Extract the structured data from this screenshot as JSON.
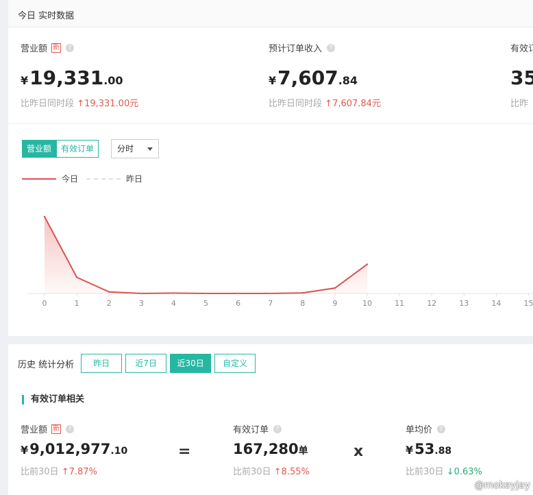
{
  "today": {
    "title": "今日 实时数据",
    "metrics": [
      {
        "label": "营业额",
        "badge": "新",
        "currency": "¥",
        "int": "19,331",
        "dec": ".00",
        "compare_label": "比昨日同时段",
        "arrow": "↑",
        "compare_value": "19,331.00元"
      },
      {
        "label": "预计订单收入",
        "currency": "¥",
        "int": "7,607",
        "dec": ".84",
        "compare_label": "比昨日同时段",
        "arrow": "↑",
        "compare_value": "7,607.84元"
      },
      {
        "label": "有效订",
        "int": "35",
        "compare_label": "比昨"
      }
    ],
    "tabs": [
      "营业额",
      "有效订单"
    ],
    "granularity": "分时",
    "legend": {
      "today": "今日",
      "yesterday": "昨日"
    }
  },
  "chart_data": {
    "type": "area",
    "x_ticks": [
      "0",
      "1",
      "2",
      "3",
      "4",
      "5",
      "6",
      "7",
      "8",
      "9",
      "10",
      "11",
      "12",
      "13",
      "14",
      "15"
    ],
    "series": [
      {
        "name": "今日",
        "x": [
          0,
          1,
          2,
          3,
          4,
          5,
          6,
          7,
          8,
          9,
          10
        ],
        "values": [
          100,
          21,
          2,
          0,
          0.5,
          0,
          0,
          0,
          0.7,
          7,
          38
        ],
        "color": "#d9534f"
      },
      {
        "name": "昨日",
        "values": [],
        "color": "#dde3e8"
      }
    ],
    "ylim": [
      0,
      100
    ],
    "grid": false
  },
  "history": {
    "title": "历史 统计分析",
    "ranges": [
      "昨日",
      "近7日",
      "近30日",
      "自定义"
    ],
    "active_range": "近30日",
    "section_title": "有效订单相关",
    "metrics": [
      {
        "label": "营业额",
        "badge": "新",
        "currency": "¥",
        "int": "9,012,977",
        "dec": ".10",
        "compare_label": "比前30日",
        "arrow": "↑",
        "compare_value": "7.87%"
      },
      {
        "label": "有效订单",
        "int": "167,280",
        "unit": "单",
        "compare_label": "比前30日",
        "arrow": "↑",
        "compare_value": "8.55%"
      },
      {
        "label": "单均价",
        "currency": "¥",
        "int": "53",
        "dec": ".88",
        "compare_label": "比前30日",
        "arrow": "↓",
        "compare_value": "0.63%"
      }
    ],
    "operators": [
      "=",
      "x"
    ]
  },
  "watermark": "@mokeyjay",
  "colors": {
    "accent": "#26b7a3",
    "up": "#e5574c",
    "down": "#2aa876",
    "line": "#d9534f"
  }
}
